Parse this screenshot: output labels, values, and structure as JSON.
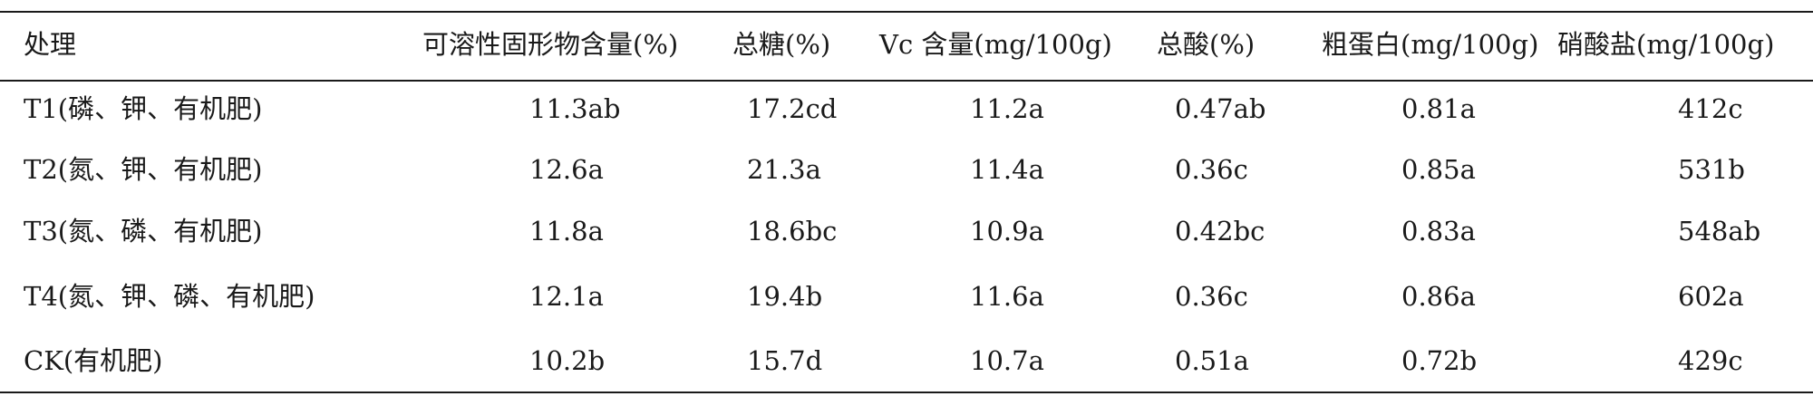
{
  "table": {
    "headers": [
      "处理",
      "可溶性固形物含量(%)",
      "总糖(%)",
      "Vc 含量(mg/100g)",
      "总酸(%)",
      "粗蛋白(mg/100g)",
      "硝酸盐(mg/100g)"
    ],
    "rows": [
      [
        "T1(磷、钾、有机肥)",
        "11.3ab",
        "17.2cd",
        "11.2a",
        "0.47ab",
        "0.81a",
        "412c"
      ],
      [
        "T2(氮、钾、有机肥)",
        "12.6a",
        "21.3a",
        "11.4a",
        "0.36c",
        "0.85a",
        "531b"
      ],
      [
        "T3(氮、磷、有机肥)",
        "11.8a",
        "18.6bc",
        "10.9a",
        "0.42bc",
        "0.83a",
        "548ab"
      ],
      [
        "T4(氮、钾、磷、有机肥)",
        "12.1a",
        "19.4b",
        "11.6a",
        "0.36c",
        "0.86a",
        "602a"
      ],
      [
        "CK(有机肥)",
        "10.2b",
        "15.7d",
        "10.7a",
        "0.51a",
        "0.72b",
        "429c"
      ]
    ]
  }
}
